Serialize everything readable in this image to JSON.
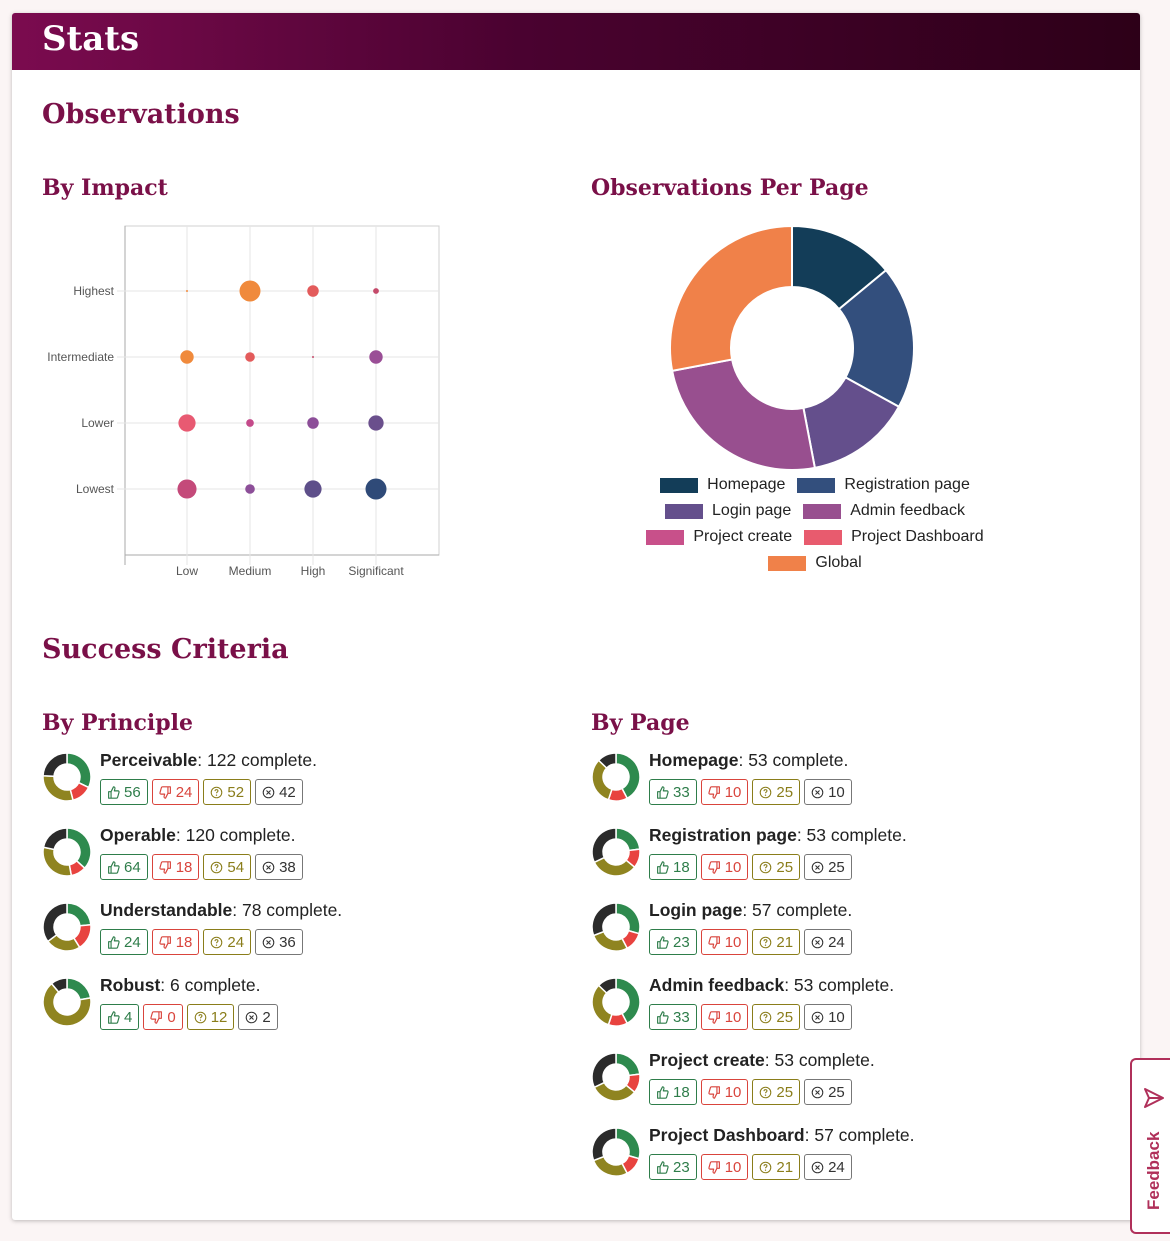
{
  "header": {
    "title": "Stats"
  },
  "observations": {
    "heading": "Observations",
    "by_impact_heading": "By Impact",
    "per_page_heading": "Observations Per Page"
  },
  "chart_data": [
    {
      "type": "scatter",
      "title": "By Impact",
      "x_categories": [
        "Low",
        "Medium",
        "High",
        "Significant"
      ],
      "y_categories": [
        "Lowest",
        "Lower",
        "Intermediate",
        "Highest"
      ],
      "points": [
        {
          "x": "Low",
          "y": "Highest",
          "size": 1,
          "color": "#f08a3c"
        },
        {
          "x": "Medium",
          "y": "Highest",
          "size": 10,
          "color": "#f08a3c"
        },
        {
          "x": "High",
          "y": "Highest",
          "size": 5,
          "color": "#e35b5b"
        },
        {
          "x": "Significant",
          "y": "Highest",
          "size": 2,
          "color": "#c44a6a"
        },
        {
          "x": "Low",
          "y": "Intermediate",
          "size": 6,
          "color": "#f08a3c"
        },
        {
          "x": "Medium",
          "y": "Intermediate",
          "size": 4,
          "color": "#e35b5b"
        },
        {
          "x": "High",
          "y": "Intermediate",
          "size": 1,
          "color": "#c44a6a"
        },
        {
          "x": "Significant",
          "y": "Intermediate",
          "size": 6,
          "color": "#9a4e96"
        },
        {
          "x": "Low",
          "y": "Lower",
          "size": 8,
          "color": "#e85a72"
        },
        {
          "x": "Medium",
          "y": "Lower",
          "size": 3,
          "color": "#c44a8a"
        },
        {
          "x": "High",
          "y": "Lower",
          "size": 5,
          "color": "#8c4e98"
        },
        {
          "x": "Significant",
          "y": "Lower",
          "size": 7,
          "color": "#6a4f8c"
        },
        {
          "x": "Low",
          "y": "Lowest",
          "size": 9,
          "color": "#c44a7a"
        },
        {
          "x": "Medium",
          "y": "Lowest",
          "size": 4,
          "color": "#8c4e98"
        },
        {
          "x": "High",
          "y": "Lowest",
          "size": 8,
          "color": "#5e4f8a"
        },
        {
          "x": "Significant",
          "y": "Lowest",
          "size": 10,
          "color": "#2f4a78"
        }
      ],
      "grid": true
    },
    {
      "type": "pie",
      "title": "Observations Per Page",
      "donut": true,
      "legend_position": "bottom",
      "categories": [
        "Homepage",
        "Registration page",
        "Login page",
        "Admin feedback",
        "Project create",
        "Project Dashboard",
        "Global"
      ],
      "values": [
        14,
        19,
        14,
        25,
        0,
        0,
        28
      ],
      "colors": [
        "#133d58",
        "#334f7d",
        "#644f8c",
        "#984f8f",
        "#c8508a",
        "#e85b6e",
        "#f08149"
      ]
    }
  ],
  "success_criteria": {
    "heading": "Success Criteria",
    "by_principle_heading": "By Principle",
    "by_page_heading": "By Page",
    "complete_suffix": "complete.",
    "by_principle": [
      {
        "name": "Perceivable",
        "complete": "122",
        "pass": "56",
        "fail": "24",
        "unknown": "52",
        "na": "42"
      },
      {
        "name": "Operable",
        "complete": "120",
        "pass": "64",
        "fail": "18",
        "unknown": "54",
        "na": "38"
      },
      {
        "name": "Understandable",
        "complete": "78",
        "pass": "24",
        "fail": "18",
        "unknown": "24",
        "na": "36"
      },
      {
        "name": "Robust",
        "complete": "6",
        "pass": "4",
        "fail": "0",
        "unknown": "12",
        "na": "2"
      }
    ],
    "by_page": [
      {
        "name": "Homepage",
        "complete": "53",
        "pass": "33",
        "fail": "10",
        "unknown": "25",
        "na": "10"
      },
      {
        "name": "Registration page",
        "complete": "53",
        "pass": "18",
        "fail": "10",
        "unknown": "25",
        "na": "25"
      },
      {
        "name": "Login page",
        "complete": "57",
        "pass": "23",
        "fail": "10",
        "unknown": "21",
        "na": "24"
      },
      {
        "name": "Admin feedback",
        "complete": "53",
        "pass": "33",
        "fail": "10",
        "unknown": "25",
        "na": "10"
      },
      {
        "name": "Project create",
        "complete": "53",
        "pass": "18",
        "fail": "10",
        "unknown": "25",
        "na": "25"
      },
      {
        "name": "Project Dashboard",
        "complete": "57",
        "pass": "23",
        "fail": "10",
        "unknown": "21",
        "na": "24"
      }
    ],
    "status_colors": {
      "pass": "#2e8a4e",
      "fail": "#e8433f",
      "unknown": "#8f8420",
      "na": "#2b2b2b"
    }
  },
  "feedback_tab": {
    "label": "Feedback",
    "icon": "send-icon"
  }
}
